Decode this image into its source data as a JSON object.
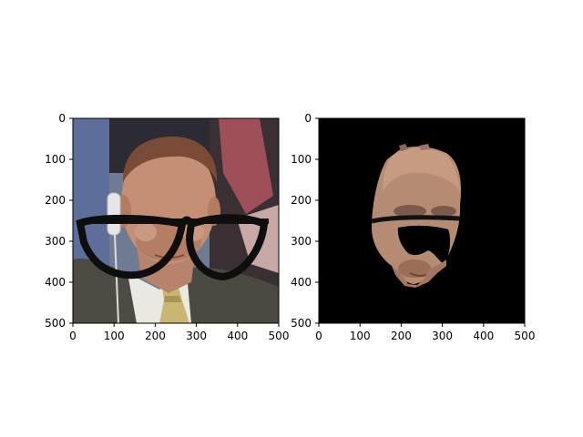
{
  "axes": [
    {
      "id": "left",
      "content": "face-with-glasses-photo",
      "xticks": [
        "0",
        "100",
        "200",
        "300",
        "400",
        "500"
      ],
      "yticks": [
        "0",
        "100",
        "200",
        "300",
        "400",
        "500"
      ]
    },
    {
      "id": "right",
      "content": "segmented-face-mask",
      "xticks": [
        "0",
        "100",
        "200",
        "300",
        "400",
        "500"
      ],
      "yticks": [
        "0",
        "100",
        "200",
        "300",
        "400",
        "500"
      ]
    }
  ]
}
